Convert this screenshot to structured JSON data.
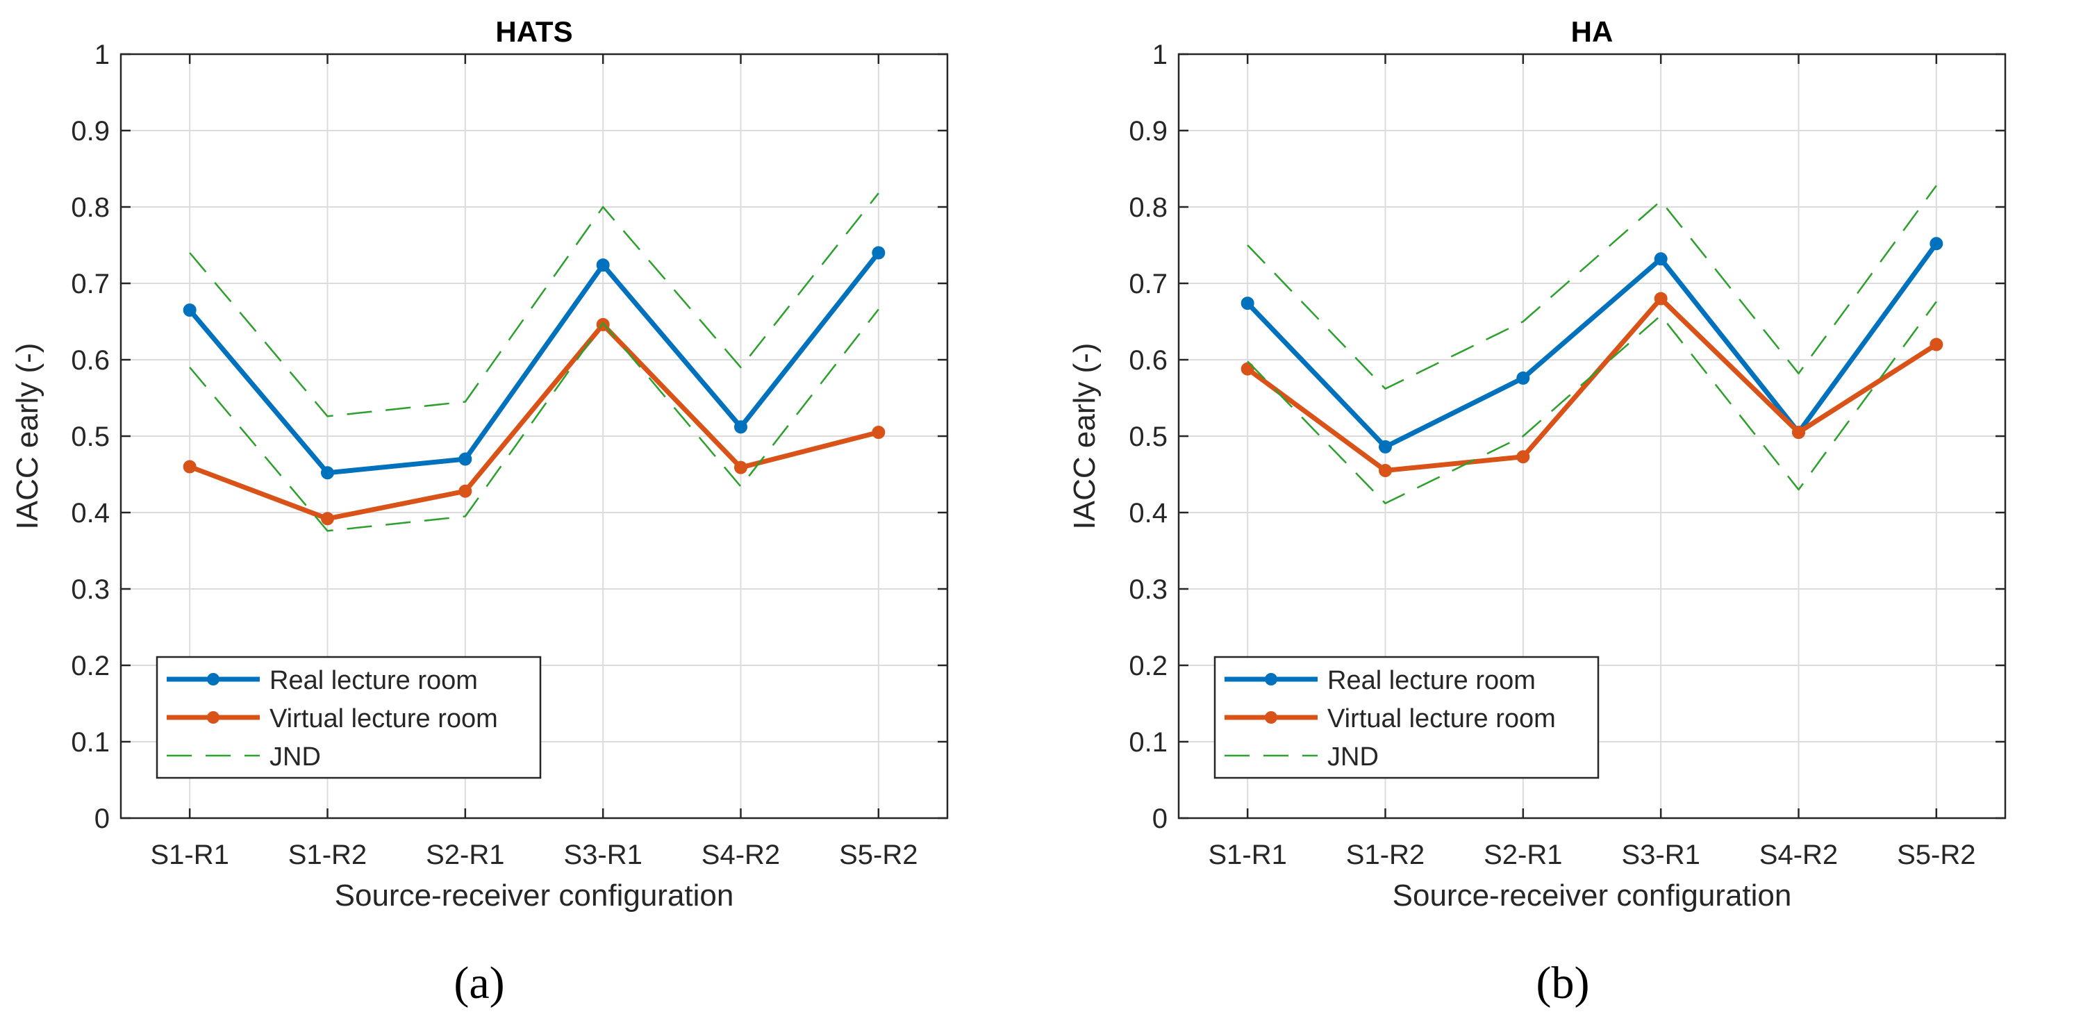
{
  "chart_data": [
    {
      "type": "line",
      "title": "HATS",
      "caption": "(a)",
      "xlabel": "Source-receiver configuration",
      "ylabel": "IACC early (-)",
      "categories": [
        "S1-R1",
        "S1-R2",
        "S2-R1",
        "S3-R1",
        "S4-R2",
        "S5-R2"
      ],
      "ylim": [
        0,
        1
      ],
      "yticks": [
        "0",
        "0.1",
        "0.2",
        "0.3",
        "0.4",
        "0.5",
        "0.6",
        "0.7",
        "0.8",
        "0.9",
        "1"
      ],
      "grid": true,
      "legend_position": "bottom-left",
      "series": [
        {
          "name": "Real lecture room",
          "values": [
            0.665,
            0.452,
            0.47,
            0.724,
            0.512,
            0.74
          ],
          "color": "#0072BD",
          "style": "solid",
          "markers": true
        },
        {
          "name": "Virtual lecture room",
          "values": [
            0.46,
            0.392,
            0.428,
            0.646,
            0.459,
            0.505
          ],
          "color": "#D95319",
          "style": "solid",
          "markers": true
        },
        {
          "name": "JND",
          "values": [
            0.74,
            0.526,
            0.545,
            0.8,
            0.59,
            0.818
          ],
          "color": "#2CA02C",
          "style": "dashed",
          "markers": false
        },
        {
          "name": "",
          "legend": false,
          "values": [
            0.59,
            0.376,
            0.395,
            0.648,
            0.434,
            0.666
          ],
          "color": "#2CA02C",
          "style": "dashed",
          "markers": false
        }
      ]
    },
    {
      "type": "line",
      "title": "HA",
      "caption": "(b)",
      "xlabel": "Source-receiver configuration",
      "ylabel": "IACC early (-)",
      "categories": [
        "S1-R1",
        "S1-R2",
        "S2-R1",
        "S3-R1",
        "S4-R2",
        "S5-R2"
      ],
      "ylim": [
        0,
        1
      ],
      "yticks": [
        "0",
        "0.1",
        "0.2",
        "0.3",
        "0.4",
        "0.5",
        "0.6",
        "0.7",
        "0.8",
        "0.9",
        "1"
      ],
      "grid": true,
      "legend_position": "bottom-left",
      "series": [
        {
          "name": "Real lecture room",
          "values": [
            0.674,
            0.486,
            0.576,
            0.732,
            0.505,
            0.752
          ],
          "color": "#0072BD",
          "style": "solid",
          "markers": true
        },
        {
          "name": "Virtual lecture room",
          "values": [
            0.588,
            0.455,
            0.473,
            0.68,
            0.505,
            0.62
          ],
          "color": "#D95319",
          "style": "solid",
          "markers": true
        },
        {
          "name": "JND",
          "values": [
            0.75,
            0.562,
            0.65,
            0.808,
            0.582,
            0.828
          ],
          "color": "#2CA02C",
          "style": "dashed",
          "markers": false
        },
        {
          "name": "",
          "legend": false,
          "values": [
            0.598,
            0.412,
            0.5,
            0.658,
            0.43,
            0.676
          ],
          "color": "#2CA02C",
          "style": "dashed",
          "markers": false
        }
      ]
    }
  ]
}
